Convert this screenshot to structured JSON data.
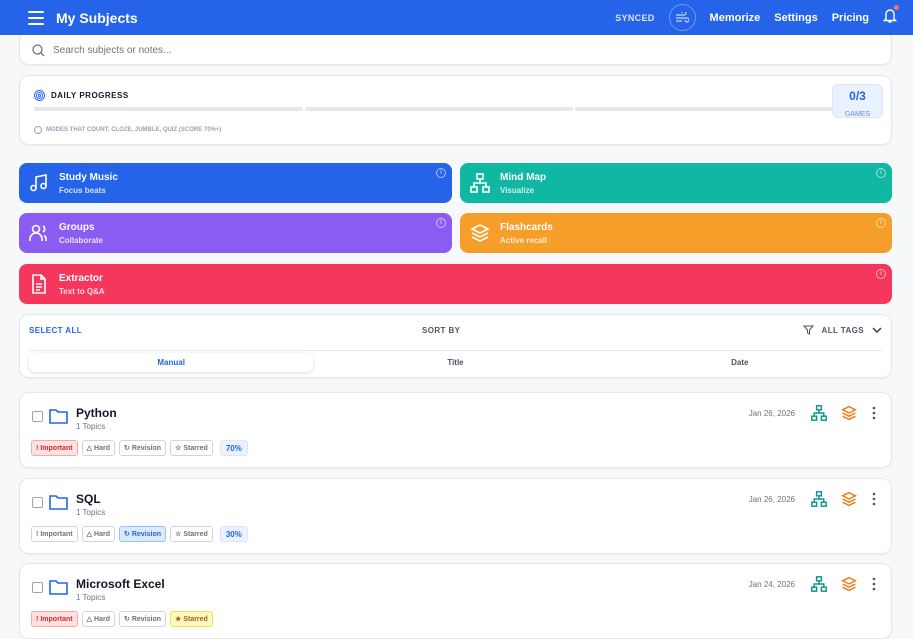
{
  "header": {
    "title": "My Subjects",
    "synced": "SYNCED",
    "nav": [
      "Memorize",
      "Settings",
      "Pricing"
    ]
  },
  "search": {
    "placeholder": "Search subjects or notes..."
  },
  "progress": {
    "title": "DAILY PROGRESS",
    "count": "0/3",
    "unit": "GAMES",
    "note": "MODES THAT COUNT: CLOZE, JUMBLE, QUIZ (SCORE 70%+)",
    "completed": 0,
    "total": 3
  },
  "tiles": [
    {
      "title": "Study Music",
      "sub": "Focus beats",
      "color": "#2563e8",
      "icon": "music-icon"
    },
    {
      "title": "Mind Map",
      "sub": "Visualize",
      "color": "#10b8a4",
      "icon": "sitemap-icon"
    },
    {
      "title": "Groups",
      "sub": "Collaborate",
      "color": "#8b5cf2",
      "icon": "users-icon"
    },
    {
      "title": "Flashcards",
      "sub": "Active recall",
      "color": "#f59e2a",
      "icon": "layers-icon"
    },
    {
      "title": "Extractor",
      "sub": "Text to Q&A",
      "color": "#f5375e",
      "icon": "file-text-icon"
    }
  ],
  "sort": {
    "select_all": "SELECT ALL",
    "sort_by": "SORT BY",
    "all_tags": "ALL TAGS",
    "options": [
      "Manual",
      "Title",
      "Date"
    ],
    "selected": "Manual"
  },
  "tag_labels": [
    "Important",
    "Hard",
    "Revision",
    "Starred"
  ],
  "subjects": [
    {
      "name": "Python",
      "topics": "1 Topics",
      "date": "Jan 26, 2026",
      "pct": "70%",
      "active": [
        "Important"
      ]
    },
    {
      "name": "SQL",
      "topics": "1 Topics",
      "date": "Jan 26, 2026",
      "pct": "30%",
      "active": [
        "Revision"
      ]
    },
    {
      "name": "Microsoft Excel",
      "topics": "1 Topics",
      "date": "Jan 24, 2026",
      "pct": "",
      "active": [
        "Important",
        "Starred"
      ]
    }
  ]
}
